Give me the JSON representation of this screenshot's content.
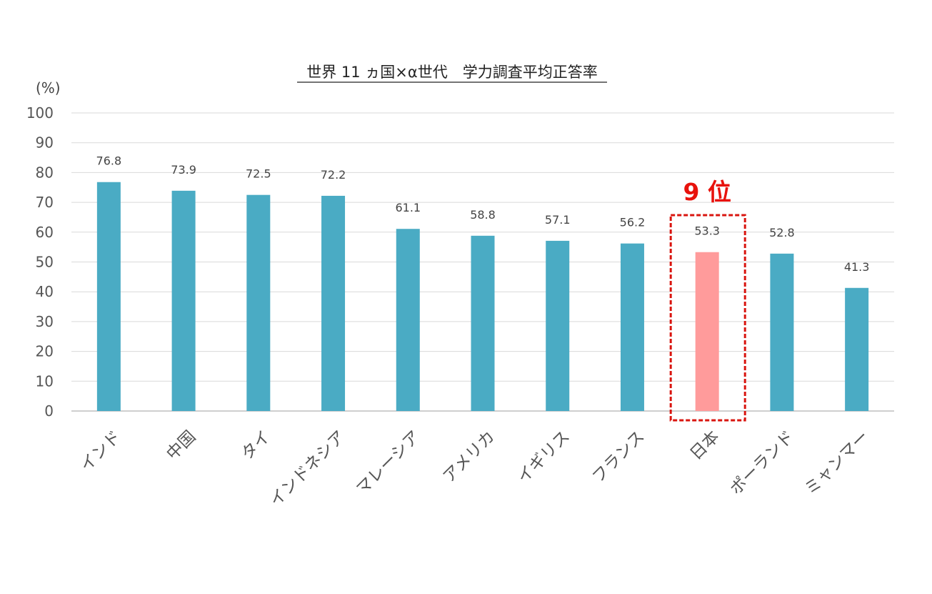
{
  "chart_data": {
    "type": "bar",
    "title": "世界 11 ヵ国×α世代　学力調査平均正答率",
    "unit_label": "(%)",
    "categories": [
      "インド",
      "中国",
      "タイ",
      "インドネシア",
      "マレーシア",
      "アメリカ",
      "イギリス",
      "フランス",
      "日本",
      "ポーランド",
      "ミャンマー"
    ],
    "values": [
      76.8,
      73.9,
      72.5,
      72.2,
      61.1,
      58.8,
      57.1,
      56.2,
      53.3,
      52.8,
      41.3
    ],
    "value_labels": [
      "76.8",
      "73.9",
      "72.5",
      "72.2",
      "61.1",
      "58.8",
      "57.1",
      "56.2",
      "53.3",
      "52.8",
      "41.3"
    ],
    "ylim": [
      0,
      100
    ],
    "yticks": [
      0,
      10,
      20,
      30,
      40,
      50,
      60,
      70,
      80,
      90,
      100
    ],
    "grid": true,
    "legend": "none",
    "highlight": {
      "category": "日本",
      "index": 8,
      "annotation": "9 位"
    },
    "colors": {
      "bar": "#4aabc4",
      "highlight_bar": "#ff9b9b",
      "highlight_box": "#d9150f",
      "annotation": "#e8120c",
      "grid": "#d9d9d9",
      "axis": "#bfbfbf"
    }
  }
}
